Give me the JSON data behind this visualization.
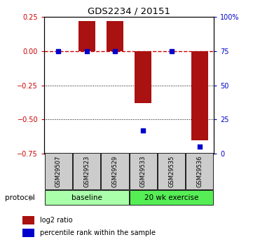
{
  "title": "GDS2234 / 20151",
  "samples": [
    "GSM29507",
    "GSM29523",
    "GSM29529",
    "GSM29533",
    "GSM29535",
    "GSM29536"
  ],
  "log2_ratios": [
    0.0,
    0.22,
    0.22,
    -0.38,
    0.0,
    -0.65
  ],
  "percentile_ranks": [
    75,
    75,
    75,
    17,
    75,
    5
  ],
  "ylim_left": [
    -0.75,
    0.25
  ],
  "ylim_right": [
    0,
    100
  ],
  "yticks_left": [
    -0.75,
    -0.5,
    -0.25,
    0.0,
    0.25
  ],
  "yticks_right": [
    0,
    25,
    50,
    75,
    100
  ],
  "bar_color": "#aa1111",
  "dot_color": "#0000cc",
  "baseline_label": "baseline",
  "exercise_label": "20 wk exercise",
  "protocol_label": "protocol",
  "legend_bar_label": "log2 ratio",
  "legend_dot_label": "percentile rank within the sample",
  "group_color_baseline": "#aaffaa",
  "group_color_exercise": "#55ee55",
  "sample_box_color": "#cccccc",
  "hline_color_ref": "#cc0000",
  "hline_color_grid": "#000000"
}
